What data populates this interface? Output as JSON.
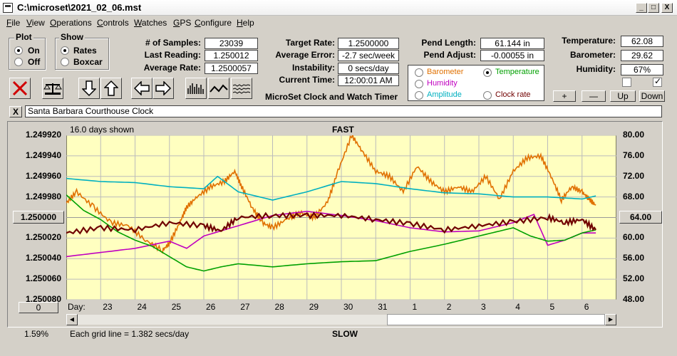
{
  "window": {
    "title": "C:\\microset\\2021_02_06.mst",
    "min_label": "_",
    "max_label": "□",
    "close_label": "X"
  },
  "menu": [
    {
      "label": "File",
      "u": "F",
      "rest": "ile"
    },
    {
      "label": "View",
      "u": "V",
      "rest": "iew"
    },
    {
      "label": "Operations",
      "u": "O",
      "rest": "perations"
    },
    {
      "label": "Controls",
      "u": "C",
      "rest": "ontrols"
    },
    {
      "label": "Watches",
      "u": "W",
      "rest": "atches"
    },
    {
      "label": "GPS",
      "u": "G",
      "rest": "PS"
    },
    {
      "label": "Configure",
      "u": "C",
      "rest": "onfigure"
    },
    {
      "label": "Help",
      "u": "H",
      "rest": "elp"
    }
  ],
  "plot_group": {
    "title": "Plot",
    "on": "On",
    "off": "Off",
    "selected": "On"
  },
  "show_group": {
    "title": "Show",
    "rates": "Rates",
    "boxcar": "Boxcar",
    "selected": "Rates"
  },
  "stats": {
    "samples_label": "# of Samples:",
    "samples": "23039",
    "last_label": "Last Reading:",
    "last": "1.250012",
    "avg_label": "Average Rate:",
    "avg": "1.2500057",
    "target_label": "Target Rate:",
    "target": "1.2500000",
    "avgerr_label": "Average Error:",
    "avgerr": "-2.7 sec/week",
    "instab_label": "Instability:",
    "instab": "0 secs/day",
    "time_label": "Current Time:",
    "time": "12:00:01 AM",
    "pendlen_label": "Pend Length:",
    "pendlen": "61.144 in",
    "pendadj_label": "Pend Adjust:",
    "pendadj": "-0.00055 in",
    "temp_label": "Temperature:",
    "temp": "62.08",
    "baro_label": "Barometer:",
    "baro": "29.62",
    "hum_label": "Humidity:",
    "hum": "67%"
  },
  "product_name": "MicroSet Clock and Watch Timer",
  "legend": {
    "barometer": "Barometer",
    "temperature": "Temperature",
    "humidity": "Humidity",
    "amplitude": "Amplitude",
    "clockrate": "Clock rate",
    "selected": "Temperature",
    "colors": {
      "barometer": "#e07000",
      "temperature": "#00a000",
      "humidity": "#c000c0",
      "amplitude": "#00b0c0",
      "clockrate": "#700000"
    }
  },
  "env_buttons": {
    "plus": "+",
    "minus": "—",
    "up": "Up",
    "down": "Down"
  },
  "clock_name": "Santa Barbara Courthouse Clock",
  "clear_name_label": "X",
  "chart_data": {
    "type": "line",
    "days_shown": "16.0 days shown",
    "top_label": "FAST",
    "bottom_label": "SLOW",
    "grid_note": "Each grid line = 1.382 secs/day",
    "left_center_button": "1.250000",
    "right_center_button": "64.00",
    "bottom_left_button": "0",
    "zoom_pct": "1.59%",
    "day_label": "Day:",
    "left_ticks": [
      "1.249920",
      "1.249940",
      "1.249960",
      "1.249980",
      "",
      "1.250020",
      "1.250040",
      "1.250060",
      "1.250080"
    ],
    "right_ticks": [
      "80.00",
      "76.00",
      "72.00",
      "68.00",
      "",
      "60.00",
      "56.00",
      "52.00",
      "48.00"
    ],
    "y_left_range": [
      1.24992,
      1.25008
    ],
    "y_right_range": [
      48,
      80
    ],
    "x_days": [
      "23",
      "24",
      "25",
      "26",
      "27",
      "28",
      "29",
      "30",
      "31",
      "1",
      "2",
      "3",
      "4",
      "5",
      "6"
    ],
    "x_range": [
      0,
      16
    ],
    "grid": true,
    "series": [
      {
        "key": "barometer",
        "color": "#e07000",
        "points": [
          [
            0,
            1.249986
          ],
          [
            0.3,
            1.249975
          ],
          [
            0.8,
            1.24999
          ],
          [
            1.3,
            1.250005
          ],
          [
            1.8,
            1.250008
          ],
          [
            2.3,
            1.250022
          ],
          [
            2.8,
            1.250032
          ],
          [
            3.0,
            1.250025
          ],
          [
            3.3,
            1.250005
          ],
          [
            3.5,
            1.24999
          ],
          [
            3.8,
            1.24998
          ],
          [
            4.2,
            1.24997
          ],
          [
            4.6,
            1.249965
          ],
          [
            4.9,
            1.249955
          ],
          [
            5.1,
            1.24997
          ],
          [
            5.4,
            1.24999
          ],
          [
            5.7,
            1.250005
          ],
          [
            6.0,
            1.25001
          ],
          [
            6.4,
            1.250002
          ],
          [
            6.8,
            1.249995
          ],
          [
            7.2,
            1.25
          ],
          [
            7.6,
            1.249985
          ],
          [
            7.9,
            1.249955
          ],
          [
            8.3,
            1.24992
          ],
          [
            8.6,
            1.249935
          ],
          [
            9.0,
            1.249955
          ],
          [
            9.4,
            1.24996
          ],
          [
            9.8,
            1.249975
          ],
          [
            10.2,
            1.24995
          ],
          [
            10.6,
            1.249965
          ],
          [
            11.0,
            1.249975
          ],
          [
            11.4,
            1.24997
          ],
          [
            11.8,
            1.249975
          ],
          [
            12.2,
            1.24996
          ],
          [
            12.6,
            1.249982
          ],
          [
            13.0,
            1.249955
          ],
          [
            13.4,
            1.249942
          ],
          [
            13.8,
            1.24994
          ],
          [
            14.1,
            1.24996
          ],
          [
            14.4,
            1.249983
          ],
          [
            14.7,
            1.24997
          ],
          [
            15.0,
            1.249975
          ],
          [
            15.2,
            1.249982
          ],
          [
            15.4,
            1.249988
          ]
        ]
      },
      {
        "key": "amplitude",
        "color": "#00b0c0",
        "points": [
          [
            0,
            1.249962
          ],
          [
            1,
            1.249965
          ],
          [
            2,
            1.249966
          ],
          [
            3,
            1.24997
          ],
          [
            4,
            1.249972
          ],
          [
            4.4,
            1.24996
          ],
          [
            5,
            1.249975
          ],
          [
            6,
            1.249983
          ],
          [
            7,
            1.249975
          ],
          [
            8,
            1.249965
          ],
          [
            9,
            1.249967
          ],
          [
            10,
            1.249972
          ],
          [
            11,
            1.249976
          ],
          [
            12,
            1.249977
          ],
          [
            13,
            1.24998
          ],
          [
            14,
            1.24998
          ],
          [
            15,
            1.249982
          ],
          [
            15.4,
            1.249979
          ]
        ]
      },
      {
        "key": "humidity",
        "color": "#c000c0",
        "points": [
          [
            0,
            1.250038
          ],
          [
            1,
            1.250034
          ],
          [
            2,
            1.25003
          ],
          [
            3,
            1.250023
          ],
          [
            3.5,
            1.25003
          ],
          [
            4,
            1.250018
          ],
          [
            5,
            1.250008
          ],
          [
            6,
            1.249998
          ],
          [
            7,
            1.249994
          ],
          [
            8,
            1.249998
          ],
          [
            9,
            1.250003
          ],
          [
            10,
            1.25001
          ],
          [
            11,
            1.250014
          ],
          [
            12,
            1.250013
          ],
          [
            13,
            1.250005
          ],
          [
            13.6,
            1.249997
          ],
          [
            14,
            1.250027
          ],
          [
            14.5,
            1.250022
          ],
          [
            15,
            1.250015
          ],
          [
            15.4,
            1.250015
          ]
        ]
      },
      {
        "key": "temperature",
        "color": "#00a000",
        "points": [
          [
            0,
            1.249978
          ],
          [
            0.5,
            1.249993
          ],
          [
            1,
            1.250002
          ],
          [
            1.5,
            1.250014
          ],
          [
            2,
            1.250022
          ],
          [
            2.5,
            1.250028
          ],
          [
            3,
            1.250038
          ],
          [
            3.5,
            1.250048
          ],
          [
            4,
            1.250052
          ],
          [
            4.5,
            1.250048
          ],
          [
            5,
            1.250045
          ],
          [
            6,
            1.250048
          ],
          [
            7,
            1.250045
          ],
          [
            8,
            1.250043
          ],
          [
            9,
            1.250042
          ],
          [
            10,
            1.250033
          ],
          [
            11,
            1.250026
          ],
          [
            12,
            1.250018
          ],
          [
            13,
            1.25001
          ],
          [
            13.5,
            1.250018
          ],
          [
            14,
            1.250023
          ],
          [
            14.5,
            1.250022
          ],
          [
            15,
            1.250015
          ],
          [
            15.4,
            1.250012
          ]
        ]
      },
      {
        "key": "clockrate",
        "color": "#700000",
        "points": [
          [
            0,
            1.250015
          ],
          [
            1,
            1.25001
          ],
          [
            2,
            1.250012
          ],
          [
            3,
            1.250005
          ],
          [
            4,
            1.250008
          ],
          [
            4.5,
            1.250013
          ],
          [
            5,
            1.25
          ],
          [
            6,
            1.249998
          ],
          [
            7,
            1.249998
          ],
          [
            8,
            1.249998
          ],
          [
            9,
            1.250002
          ],
          [
            10,
            1.250006
          ],
          [
            11,
            1.250012
          ],
          [
            12,
            1.250008
          ],
          [
            13,
            1.250004
          ],
          [
            14,
            1.25
          ],
          [
            14.5,
            1.250005
          ],
          [
            15,
            1.250002
          ],
          [
            15.4,
            1.250012
          ]
        ]
      }
    ]
  }
}
